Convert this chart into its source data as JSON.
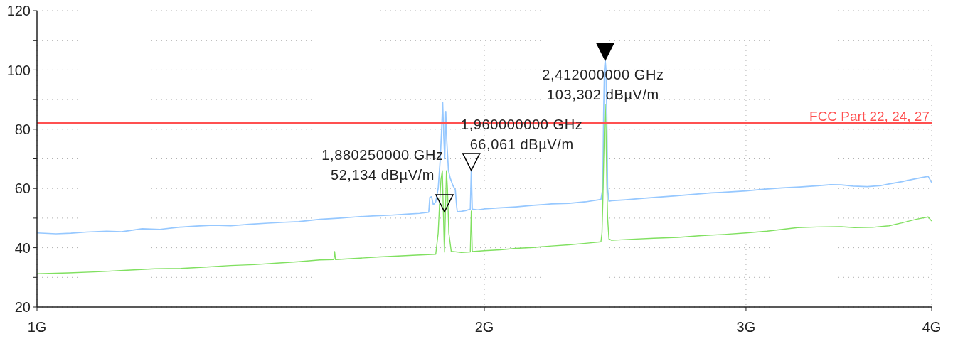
{
  "chart_data": {
    "type": "line",
    "xlim": [
      1,
      4
    ],
    "xticks": [
      {
        "value": 1,
        "label": "1G"
      },
      {
        "value": 2,
        "label": "2G"
      },
      {
        "value": 3,
        "label": "3G"
      },
      {
        "value": 4,
        "label": "4G"
      }
    ],
    "ylim": [
      20,
      120
    ],
    "yticks": [
      20,
      {
        "value": 30,
        "label": null
      },
      40,
      {
        "value": 50,
        "label": null
      },
      60,
      {
        "value": 70,
        "label": null
      },
      80,
      {
        "value": 90,
        "label": null
      },
      100,
      {
        "value": 110,
        "label": null
      },
      120
    ],
    "log": "x",
    "grid": true,
    "series": [
      {
        "color": "#96c8ff",
        "x": [
          1.0,
          1.03,
          1.054,
          1.08,
          1.114,
          1.14,
          1.177,
          1.21,
          1.244,
          1.28,
          1.314,
          1.35,
          1.389,
          1.43,
          1.467,
          1.5,
          1.55,
          1.6,
          1.638,
          1.69,
          1.731,
          1.78,
          1.809,
          1.835,
          1.838,
          1.843,
          1.848,
          1.855,
          1.862,
          1.868,
          1.872,
          1.875,
          1.878,
          1.881,
          1.884,
          1.887,
          1.892,
          1.897,
          1.905,
          1.912,
          1.916,
          1.918,
          1.93,
          1.945,
          1.957,
          1.96,
          1.963,
          1.98,
          2.0,
          2.042,
          2.1,
          2.158,
          2.22,
          2.28,
          2.34,
          2.396,
          2.403,
          2.406,
          2.409,
          2.412,
          2.415,
          2.418,
          2.421,
          2.426,
          2.436,
          2.49,
          2.546,
          2.61,
          2.69,
          2.76,
          2.843,
          2.92,
          3.0,
          3.08,
          3.174,
          3.26,
          3.353,
          3.42,
          3.477,
          3.543,
          3.62,
          3.7,
          3.744,
          3.82,
          3.904,
          3.95,
          3.978,
          4.0
        ],
        "values": [
          45.0,
          44.7,
          44.9,
          45.3,
          45.6,
          45.4,
          46.4,
          46.2,
          46.9,
          47.3,
          47.6,
          47.4,
          47.9,
          48.3,
          48.6,
          48.8,
          49.6,
          50.0,
          50.4,
          50.8,
          51.0,
          51.4,
          51.6,
          52.0,
          57.0,
          57.2,
          54.5,
          55.5,
          60,
          70,
          80,
          89,
          78,
          70,
          86,
          76,
          66,
          63.5,
          61,
          59.6,
          54,
          52.1,
          52.3,
          52.6,
          53,
          66.1,
          53,
          52.8,
          53.1,
          53.4,
          53.8,
          54.3,
          54.8,
          55.0,
          55.5,
          56.3,
          60,
          85,
          100,
          103.3,
          100,
          85,
          60,
          55.7,
          55.9,
          56.2,
          56.6,
          57.0,
          57.5,
          58.0,
          58.5,
          58.8,
          59.2,
          59.7,
          60.2,
          60.5,
          60.9,
          61.3,
          61.2,
          60.8,
          60.6,
          61.0,
          61.5,
          62.3,
          63.3,
          63.8,
          64.1,
          62.0
        ]
      },
      {
        "color": "#80e060",
        "x": [
          1.0,
          1.05,
          1.1,
          1.15,
          1.2,
          1.25,
          1.3,
          1.35,
          1.4,
          1.45,
          1.5,
          1.55,
          1.584,
          1.586,
          1.588,
          1.65,
          1.7,
          1.75,
          1.8,
          1.855,
          1.862,
          1.866,
          1.87,
          1.874,
          1.877,
          1.88,
          1.883,
          1.886,
          1.889,
          1.893,
          1.9,
          1.93,
          1.957,
          1.96,
          1.963,
          2.0,
          2.05,
          2.1,
          2.158,
          2.22,
          2.28,
          2.34,
          2.396,
          2.4,
          2.403,
          2.406,
          2.409,
          2.412,
          2.415,
          2.418,
          2.421,
          2.426,
          2.436,
          2.5,
          2.6,
          2.7,
          2.8,
          2.9,
          3.0,
          3.1,
          3.174,
          3.25,
          3.35,
          3.477,
          3.55,
          3.65,
          3.744,
          3.82,
          3.904,
          3.978,
          4.0
        ],
        "values": [
          31.2,
          31.5,
          31.9,
          32.4,
          32.9,
          33.0,
          33.5,
          34.0,
          34.3,
          34.8,
          35.3,
          35.9,
          36.0,
          38.7,
          36.0,
          36.5,
          36.9,
          37.2,
          37.5,
          37.8,
          45,
          55,
          63,
          66,
          52,
          38.5,
          52,
          66,
          60,
          45,
          38.8,
          38.4,
          38.6,
          52.4,
          38.7,
          39.0,
          39.3,
          39.8,
          40.1,
          40.6,
          41.0,
          41.5,
          42.0,
          45,
          55,
          67.7,
          80,
          88.3,
          80,
          61.7,
          50,
          43,
          42.5,
          42.8,
          43.2,
          43.5,
          44.1,
          44.5,
          45.0,
          45.6,
          46.2,
          46.8,
          47.0,
          47.1,
          46.8,
          46.9,
          47.4,
          48.4,
          49.6,
          50.4,
          49.0
        ]
      }
    ],
    "ref_lines": [
      {
        "axis": "y",
        "value": 82.2,
        "label": "FCC Part 22, 24, 27",
        "color": "#ff5050"
      }
    ],
    "annotations": [
      {
        "text": "2,412000000 GHz\n103,302 dBµV/m",
        "x": 2.412,
        "y": 103.302
      },
      {
        "text": "1,880250000 GHz\n52,134 dBµV/m",
        "x": 1.88025,
        "y": 52.134
      },
      {
        "text": "1,960000000 GHz\n66,061 dBµV/m",
        "x": 1.96,
        "y": 66.061
      }
    ]
  }
}
